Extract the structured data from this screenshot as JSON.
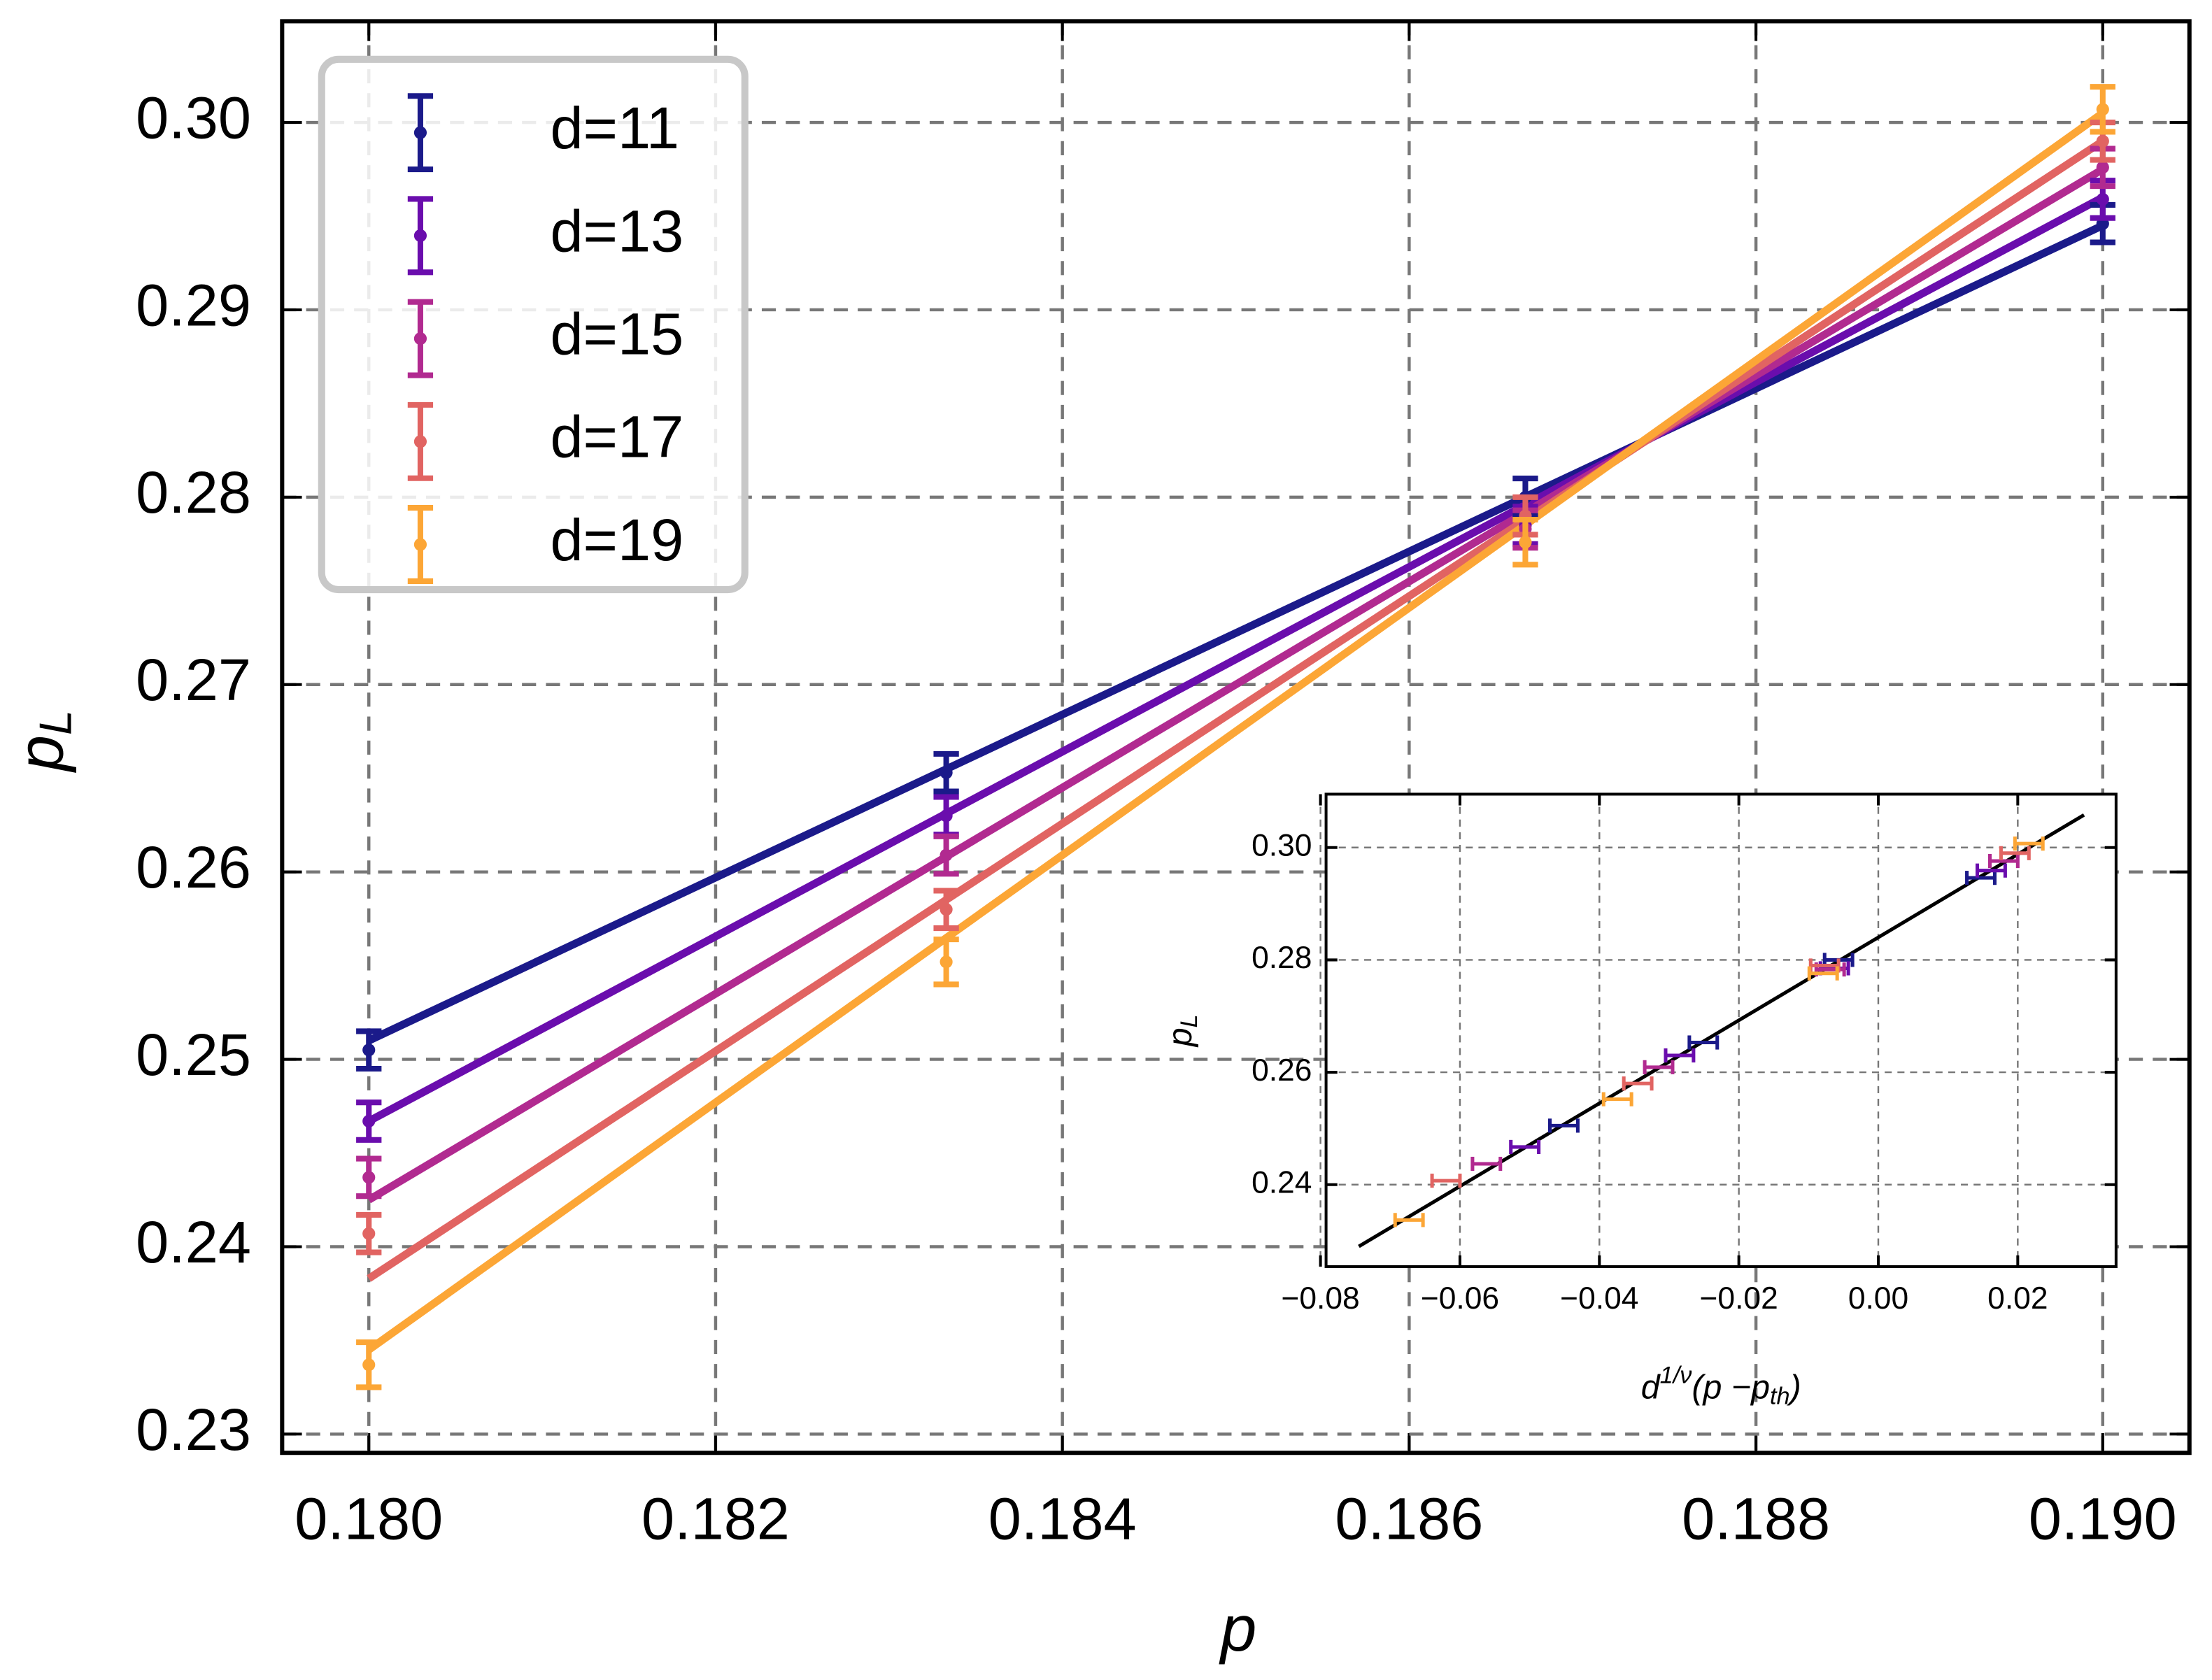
{
  "chart_data": [
    {
      "type": "errorbar",
      "xlabel": "p",
      "ylabel": "p",
      "ylabel_sub": "L",
      "x": [
        0.18,
        0.18333,
        0.18667,
        0.19
      ],
      "fit_x": [
        0.18,
        0.19
      ],
      "xlim": [
        0.1795,
        0.1905
      ],
      "ylim": [
        0.229,
        0.3054
      ],
      "xticks": [
        {
          "value": 0.18,
          "label": "0.180"
        },
        0.182,
        0.184,
        0.186,
        0.188,
        {
          "value": 0.19,
          "label": "0.190"
        }
      ],
      "yticks": [
        0.23,
        0.24,
        0.25,
        0.26,
        0.27,
        0.28,
        0.29,
        {
          "value": 0.3,
          "label": "0.30"
        }
      ],
      "grid": true,
      "legend": "upper left",
      "series": [
        {
          "name": "d=11",
          "color": "#1b1a8a",
          "values": [
            0.2505,
            0.2653,
            0.28,
            0.2946
          ],
          "errors": [
            0.001,
            0.001,
            0.001,
            0.001
          ],
          "fit": [
            0.251,
            0.2945
          ]
        },
        {
          "name": "d=13",
          "color": "#6a0dad",
          "values": [
            0.2467,
            0.263,
            0.2785,
            0.2959
          ],
          "errors": [
            0.001,
            0.001,
            0.001,
            0.001
          ],
          "fit": [
            0.2467,
            0.296
          ]
        },
        {
          "name": "d=15",
          "color": "#b12a90",
          "values": [
            0.2437,
            0.2609,
            0.2783,
            0.2976
          ],
          "errors": [
            0.001,
            0.001,
            0.001,
            0.001
          ],
          "fit": [
            0.2425,
            0.2975
          ]
        },
        {
          "name": "d=17",
          "color": "#e16462",
          "values": [
            0.2407,
            0.258,
            0.279,
            0.299
          ],
          "errors": [
            0.001,
            0.001,
            0.001,
            0.001
          ],
          "fit": [
            0.2383,
            0.299
          ]
        },
        {
          "name": "d=19",
          "color": "#fca636",
          "values": [
            0.2337,
            0.2552,
            0.2776,
            0.3007
          ],
          "errors": [
            0.0012,
            0.0012,
            0.0012,
            0.0012
          ],
          "fit": [
            0.2345,
            0.3005
          ]
        }
      ]
    },
    {
      "type": "errorbar",
      "xlabel": [
        "d",
        "1/ν",
        "(p −p",
        "th",
        ")"
      ],
      "ylabel": "p",
      "ylabel_sub": "L",
      "xlim": [
        -0.0792,
        0.0341
      ],
      "ylim": [
        0.2254,
        0.3095
      ],
      "xticks": [
        {
          "value": -0.08,
          "label": "−0.08"
        },
        {
          "value": -0.06,
          "label": "−0.06"
        },
        {
          "value": -0.04,
          "label": "−0.04"
        },
        {
          "value": -0.02,
          "label": "−0.02"
        },
        {
          "value": 0,
          "label": "0.00"
        },
        0.02
      ],
      "yticks": [
        0.24,
        0.26,
        0.28,
        {
          "value": 0.3,
          "label": "0.30"
        }
      ],
      "grid": true,
      "series": [
        {
          "color": "#1b1a8a",
          "x": [
            -0.0451,
            -0.0251,
            -0.0057,
            0.0147
          ],
          "values": [
            0.2505,
            0.2653,
            0.28,
            0.2946
          ],
          "xerr": [
            0.002,
            0.002,
            0.002,
            0.002
          ]
        },
        {
          "color": "#6a0dad",
          "x": [
            -0.0507,
            -0.0285,
            -0.0063,
            0.0162
          ],
          "values": [
            0.2467,
            0.263,
            0.2785,
            0.2959
          ],
          "xerr": [
            0.002,
            0.002,
            0.002,
            0.002
          ]
        },
        {
          "color": "#b12a90",
          "x": [
            -0.0562,
            -0.0315,
            -0.0069,
            0.018
          ],
          "values": [
            0.2437,
            0.2609,
            0.2783,
            0.2976
          ],
          "xerr": [
            0.002,
            0.002,
            0.002,
            0.002
          ]
        },
        {
          "color": "#e16462",
          "x": [
            -0.062,
            -0.0345,
            -0.0077,
            0.0196
          ],
          "values": [
            0.2407,
            0.258,
            0.279,
            0.299
          ],
          "xerr": [
            0.002,
            0.002,
            0.002,
            0.002
          ]
        },
        {
          "color": "#fca636",
          "x": [
            -0.0673,
            -0.0374,
            -0.0079,
            0.0216
          ],
          "values": [
            0.2337,
            0.2552,
            0.2776,
            0.3007
          ],
          "xerr": [
            0.002,
            0.002,
            0.002,
            0.002
          ]
        }
      ],
      "fit": {
        "color": "#000000",
        "x": [
          -0.0745,
          0.0295
        ],
        "y": [
          0.229,
          0.3058
        ]
      }
    }
  ]
}
